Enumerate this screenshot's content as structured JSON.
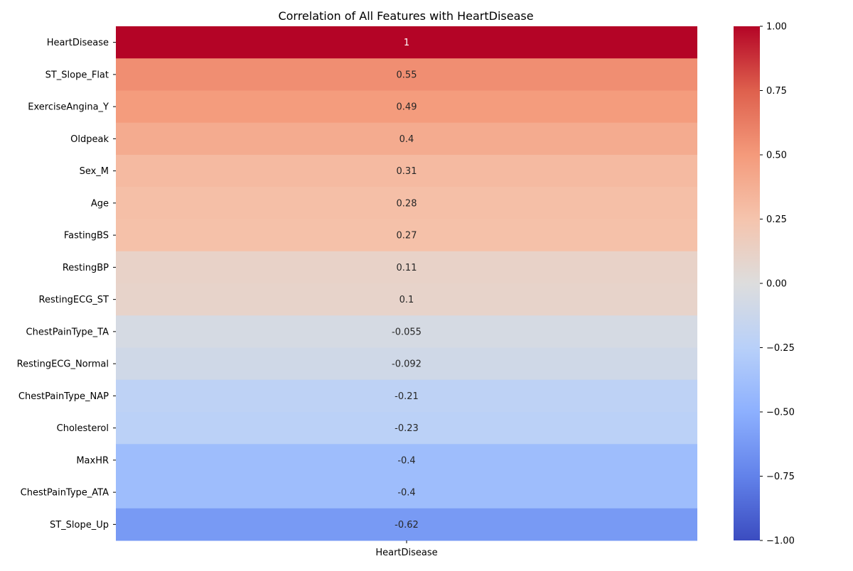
{
  "chart_data": {
    "type": "heatmap",
    "title": "Correlation of All Features with HeartDisease",
    "columns": [
      "HeartDisease"
    ],
    "rows": [
      {
        "label": "HeartDisease",
        "value": 1,
        "text": "1"
      },
      {
        "label": "ST_Slope_Flat",
        "value": 0.55,
        "text": "0.55"
      },
      {
        "label": "ExerciseAngina_Y",
        "value": 0.49,
        "text": "0.49"
      },
      {
        "label": "Oldpeak",
        "value": 0.4,
        "text": "0.4"
      },
      {
        "label": "Sex_M",
        "value": 0.31,
        "text": "0.31"
      },
      {
        "label": "Age",
        "value": 0.28,
        "text": "0.28"
      },
      {
        "label": "FastingBS",
        "value": 0.27,
        "text": "0.27"
      },
      {
        "label": "RestingBP",
        "value": 0.11,
        "text": "0.11"
      },
      {
        "label": "RestingECG_ST",
        "value": 0.1,
        "text": "0.1"
      },
      {
        "label": "ChestPainType_TA",
        "value": -0.055,
        "text": "-0.055"
      },
      {
        "label": "RestingECG_Normal",
        "value": -0.092,
        "text": "-0.092"
      },
      {
        "label": "ChestPainType_NAP",
        "value": -0.21,
        "text": "-0.21"
      },
      {
        "label": "Cholesterol",
        "value": -0.23,
        "text": "-0.23"
      },
      {
        "label": "MaxHR",
        "value": -0.4,
        "text": "-0.4"
      },
      {
        "label": "ChestPainType_ATA",
        "value": -0.4,
        "text": "-0.4"
      },
      {
        "label": "ST_Slope_Up",
        "value": -0.62,
        "text": "-0.62"
      }
    ],
    "colormap": "coolwarm",
    "vmin": -1,
    "vmax": 1,
    "colorbar_ticks": [
      {
        "value": 1,
        "label": "1.00"
      },
      {
        "value": 0.75,
        "label": "0.75"
      },
      {
        "value": 0.5,
        "label": "0.50"
      },
      {
        "value": 0.25,
        "label": "0.25"
      },
      {
        "value": 0,
        "label": "0.00"
      },
      {
        "value": -0.25,
        "label": "−0.25"
      },
      {
        "value": -0.5,
        "label": "−0.50"
      },
      {
        "value": -0.75,
        "label": "−0.75"
      },
      {
        "value": -1,
        "label": "−1.00"
      }
    ],
    "colors": {
      "cold": "#3b4cc0",
      "neutral": "#dddddd",
      "warm": "#b40426"
    }
  }
}
